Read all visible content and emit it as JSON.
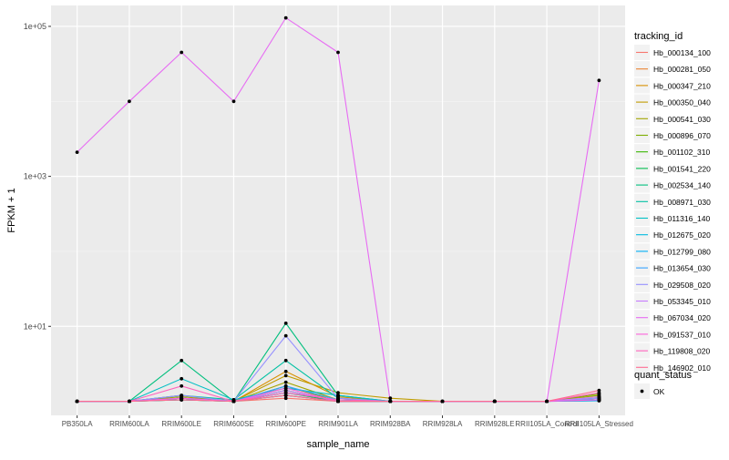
{
  "chart_data": {
    "type": "line",
    "xlabel": "sample_name",
    "ylabel": "FPKM + 1",
    "y_scale": "log10",
    "ylim": [
      0.65,
      190000
    ],
    "y_ticks": [
      {
        "value": 10,
        "label": "1e+01"
      },
      {
        "value": 1000,
        "label": "1e+03"
      },
      {
        "value": 100000,
        "label": "1e+05"
      }
    ],
    "y_minor_ticks": [
      100,
      10000
    ],
    "grid": true,
    "legend_position": "right",
    "categories": [
      "PB350LA",
      "RRIM600LA",
      "RRIM600LE",
      "RRIM600SE",
      "RRIM600PE",
      "RRIM901LA",
      "RRIM928BA",
      "RRIM928LA",
      "RRIM928LE",
      "RRII105LA_Control",
      "RRII105LA_Stressed"
    ],
    "legend_title": "tracking_id",
    "series": [
      {
        "name": "Hb_000134_100",
        "color": "#F8766D",
        "values": [
          1,
          1,
          1.05,
          1,
          1.1,
          1,
          1,
          1,
          1,
          1,
          1.02
        ]
      },
      {
        "name": "Hb_000281_050",
        "color": "#EA8331",
        "values": [
          1,
          1,
          1.1,
          1,
          1.2,
          1,
          1,
          1,
          1,
          1,
          1.05
        ]
      },
      {
        "name": "Hb_000347_210",
        "color": "#D89000",
        "values": [
          1,
          1,
          1.2,
          1,
          2.5,
          1.15,
          1,
          1,
          1,
          1,
          1.15
        ]
      },
      {
        "name": "Hb_000350_040",
        "color": "#C09B00",
        "values": [
          1,
          1,
          1.1,
          1,
          2.2,
          1.3,
          1.1,
          1,
          1,
          1,
          1.1
        ]
      },
      {
        "name": "Hb_000541_030",
        "color": "#A3A500",
        "values": [
          1,
          1,
          1.15,
          1,
          1.8,
          1.05,
          1,
          1,
          1,
          1,
          1.2
        ]
      },
      {
        "name": "Hb_000896_070",
        "color": "#7CAE00",
        "values": [
          1,
          1,
          1.1,
          1,
          1.6,
          1,
          1,
          1,
          1,
          1,
          1.25
        ]
      },
      {
        "name": "Hb_001102_310",
        "color": "#39B600",
        "values": [
          1,
          1,
          1.05,
          1,
          1.4,
          1,
          1,
          1,
          1,
          1,
          1.1
        ]
      },
      {
        "name": "Hb_001541_220",
        "color": "#00BB4E",
        "values": [
          1,
          1,
          1.1,
          1,
          1.3,
          1,
          1,
          1,
          1,
          1,
          1.05
        ]
      },
      {
        "name": "Hb_002534_140",
        "color": "#00BF7D",
        "values": [
          1,
          1,
          3.5,
          1,
          11,
          1.2,
          1,
          1,
          1,
          1,
          1.05
        ]
      },
      {
        "name": "Hb_008971_030",
        "color": "#00C1A3",
        "values": [
          1,
          1,
          1.2,
          1.05,
          3.5,
          1.1,
          1,
          1,
          1,
          1,
          1.05
        ]
      },
      {
        "name": "Hb_011316_140",
        "color": "#00BFC4",
        "values": [
          1,
          1,
          2,
          1.05,
          1.5,
          1.2,
          1,
          1,
          1,
          1,
          1.1
        ]
      },
      {
        "name": "Hb_012675_020",
        "color": "#00BAE0",
        "values": [
          1,
          1,
          1.1,
          1,
          1.3,
          1.05,
          1,
          1,
          1,
          1,
          1.05
        ]
      },
      {
        "name": "Hb_012799_080",
        "color": "#00B0F6",
        "values": [
          1,
          1,
          1.05,
          1,
          1.2,
          1,
          1,
          1,
          1,
          1,
          1.02
        ]
      },
      {
        "name": "Hb_013654_030",
        "color": "#35A2FF",
        "values": [
          1,
          1,
          1.1,
          1,
          1.6,
          1.05,
          1,
          1,
          1,
          1,
          1.05
        ]
      },
      {
        "name": "Hb_029508_020",
        "color": "#9590FF",
        "values": [
          1,
          1,
          1.2,
          1,
          7.5,
          1.1,
          1,
          1,
          1,
          1,
          1.1
        ]
      },
      {
        "name": "Hb_053345_010",
        "color": "#C77CFF",
        "values": [
          1,
          1,
          1.1,
          1,
          1.4,
          1,
          1,
          1,
          1,
          1,
          1.15
        ]
      },
      {
        "name": "Hb_067034_020",
        "color": "#E76BF3",
        "values": [
          2100,
          10000,
          45000,
          10000,
          130000,
          45000,
          1,
          1,
          1,
          1,
          19000
        ]
      },
      {
        "name": "Hb_091537_010",
        "color": "#FA62DB",
        "values": [
          1,
          1,
          1.1,
          1,
          1.5,
          1,
          1,
          1,
          1,
          1,
          1.05
        ]
      },
      {
        "name": "Hb_119808_020",
        "color": "#FF62BC",
        "values": [
          1,
          1,
          1.6,
          1,
          1.3,
          1.05,
          1,
          1,
          1,
          1,
          1.3
        ]
      },
      {
        "name": "Hb_146902_010",
        "color": "#FF6C91",
        "values": [
          1,
          1,
          1.05,
          1,
          1.2,
          1,
          1,
          1,
          1,
          1,
          1.4
        ]
      }
    ],
    "shape_legend": {
      "title": "quant_status",
      "items": [
        "OK"
      ]
    }
  }
}
